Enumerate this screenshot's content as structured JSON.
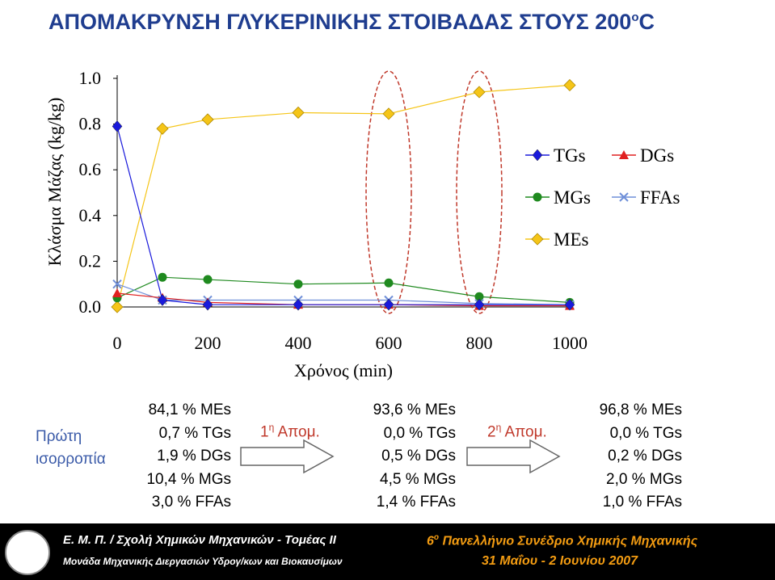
{
  "title": {
    "text": "ΑΠΟΜΑΚΡΥΝΣΗ ΓΛΥΚΕΡΙΝΙΚΗΣ ΣΤΟΙΒΑΔΑΣ ΣΤΟΥΣ 200",
    "sup": "o",
    "suffix": "C"
  },
  "colors": {
    "title": "#1f3d8f",
    "TGs": "#1a1adb",
    "DGs": "#e02020",
    "MGs": "#1f8a1f",
    "MEs": "#f5c518",
    "FFAs": "#6f8fd8",
    "ellipse": "#c0392b",
    "label": "#3a5aa8"
  },
  "chart_data": {
    "type": "line",
    "xlabel": "Χρόνος (min)",
    "ylabel": "Κλάσμα Μάζας (kg/kg)",
    "xlim": [
      0,
      1000
    ],
    "ylim": [
      0,
      1
    ],
    "xticks": [
      "0",
      "200",
      "400",
      "600",
      "800",
      "1000"
    ],
    "yticks": [
      "1.0",
      "0.8",
      "0.6",
      "0.4",
      "0.2",
      "0.0"
    ],
    "ytick_values": [
      1.0,
      0.8,
      0.6,
      0.4,
      0.2,
      0.0
    ],
    "xtick_values": [
      0,
      200,
      400,
      600,
      800,
      1000
    ],
    "legend_position": "right",
    "x": [
      0,
      100,
      200,
      400,
      600,
      800,
      1000
    ],
    "series": [
      {
        "name": "TGs",
        "marker": "diamond",
        "values": [
          0.79,
          0.03,
          0.01,
          0.01,
          0.01,
          0.01,
          0.01
        ]
      },
      {
        "name": "DGs",
        "marker": "triangle",
        "values": [
          0.06,
          0.04,
          0.02,
          0.01,
          0.01,
          0.005,
          0.005
        ]
      },
      {
        "name": "MGs",
        "marker": "circle",
        "values": [
          0.04,
          0.13,
          0.12,
          0.1,
          0.105,
          0.045,
          0.02
        ]
      },
      {
        "name": "MEs",
        "marker": "square-diamond",
        "values": [
          0.0,
          0.78,
          0.82,
          0.85,
          0.845,
          0.94,
          0.97
        ]
      },
      {
        "name": "FFAs",
        "marker": "x",
        "values": [
          0.1,
          0.03,
          0.03,
          0.03,
          0.03,
          0.015,
          0.01
        ]
      }
    ],
    "highlight_x": [
      600,
      800
    ]
  },
  "blocks": [
    {
      "label1": "Πρώτη",
      "label2": "ισορροπία",
      "lines": [
        "84,1 % MEs",
        "0,7 % TGs",
        "1,9 % DGs",
        "10,4 % MGs",
        "3,0 % FFAs"
      ]
    },
    {
      "step_prefix": "1",
      "step_sup": "η",
      "step_suffix": "Απομ.",
      "lines": [
        "93,6 % MEs",
        "0,0 % TGs",
        "0,5 % DGs",
        "4,5 % MGs",
        "1,4 % FFAs"
      ]
    },
    {
      "step_prefix": "2",
      "step_sup": "η",
      "step_suffix": "Απομ.",
      "lines": [
        "96,8 % MEs",
        "0,0 % TGs",
        "0,2 % DGs",
        "2,0 % MGs",
        "1,0 % FFAs"
      ]
    }
  ],
  "footer": {
    "left1": "Ε. Μ. Π. / Σχολή Χημικών Μηχανικών - Τομέας ΙΙ",
    "left2": "Μονάδα Μηχανικής Διεργασιών Υδρογ/κων και Βιοκαυσίμων",
    "right1_prefix": "6",
    "right1_sup": "ο",
    "right1_suffix": "Πανελλήνιο Συνέδριο Χημικής Μηχανικής",
    "right2": "31 Μαΐου - 2 Ιουνίου 2007"
  }
}
